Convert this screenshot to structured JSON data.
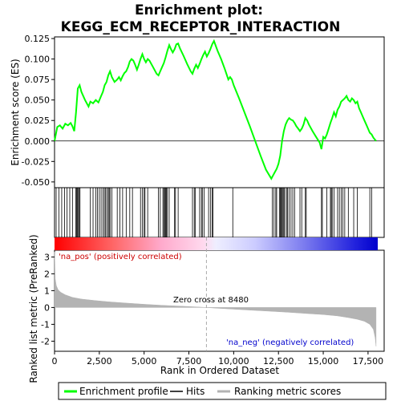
{
  "chart_data": {
    "type": "line",
    "title_line1": "Enrichment plot:",
    "title_line2": "KEGG_ECM_RECEPTOR_INTERACTION",
    "es_panel": {
      "ylabel": "Enrichment score (ES)",
      "ylim": [
        -0.057,
        0.127
      ],
      "yticks": [
        -0.05,
        -0.025,
        0.0,
        0.025,
        0.05,
        0.075,
        0.1,
        0.125
      ],
      "ytick_labels": [
        "-0.050",
        "-0.025",
        "0.000",
        "0.025",
        "0.050",
        "0.075",
        "0.100",
        "0.125"
      ],
      "series_name": "Enrichment profile",
      "color": "#00ff00",
      "x": [
        0,
        150,
        300,
        450,
        600,
        750,
        900,
        1000,
        1100,
        1200,
        1300,
        1400,
        1500,
        1700,
        1900,
        2000,
        2150,
        2300,
        2450,
        2600,
        2700,
        2800,
        2900,
        3000,
        3100,
        3200,
        3350,
        3500,
        3600,
        3700,
        3800,
        3900,
        4000,
        4100,
        4200,
        4300,
        4400,
        4500,
        4600,
        4700,
        4800,
        4900,
        5000,
        5100,
        5200,
        5300,
        5500,
        5700,
        5800,
        5900,
        6000,
        6100,
        6200,
        6300,
        6400,
        6500,
        6600,
        6700,
        6800,
        6900,
        7000,
        7200,
        7400,
        7600,
        7700,
        7800,
        7900,
        8000,
        8100,
        8200,
        8300,
        8400,
        8500,
        8600,
        8700,
        8800,
        8900,
        9100,
        9300,
        9500,
        9700,
        9800,
        9900,
        10000,
        10300,
        10600,
        10900,
        11200,
        11500,
        11800,
        12100,
        12200,
        12300,
        12400,
        12500,
        12600,
        12700,
        12800,
        12900,
        13000,
        13100,
        13200,
        13300,
        13400,
        13500,
        13600,
        13700,
        13800,
        13900,
        14000,
        14100,
        14200,
        14400,
        14600,
        14800,
        14900,
        15000,
        15100,
        15200,
        15300,
        15400,
        15500,
        15600,
        15700,
        15800,
        15900,
        16000,
        16100,
        16200,
        16300,
        16400,
        16500,
        16600,
        16700,
        16800,
        16900,
        17000,
        17100,
        17200,
        17300,
        17400,
        17500,
        17600,
        17700,
        17800,
        17950
      ],
      "y": [
        0.0,
        0.017,
        0.019,
        0.015,
        0.021,
        0.019,
        0.022,
        0.018,
        0.012,
        0.035,
        0.064,
        0.068,
        0.06,
        0.05,
        0.042,
        0.048,
        0.046,
        0.05,
        0.047,
        0.055,
        0.06,
        0.068,
        0.072,
        0.08,
        0.085,
        0.078,
        0.072,
        0.075,
        0.078,
        0.074,
        0.079,
        0.083,
        0.085,
        0.09,
        0.097,
        0.1,
        0.098,
        0.093,
        0.087,
        0.093,
        0.1,
        0.106,
        0.1,
        0.096,
        0.1,
        0.098,
        0.09,
        0.082,
        0.08,
        0.085,
        0.09,
        0.095,
        0.102,
        0.11,
        0.117,
        0.112,
        0.108,
        0.112,
        0.118,
        0.119,
        0.113,
        0.104,
        0.094,
        0.085,
        0.082,
        0.088,
        0.093,
        0.089,
        0.094,
        0.1,
        0.105,
        0.109,
        0.103,
        0.107,
        0.112,
        0.118,
        0.122,
        0.11,
        0.1,
        0.088,
        0.075,
        0.078,
        0.075,
        0.068,
        0.052,
        0.035,
        0.018,
        0.0,
        -0.018,
        -0.035,
        -0.046,
        -0.042,
        -0.038,
        -0.034,
        -0.028,
        -0.018,
        0.0,
        0.012,
        0.02,
        0.025,
        0.028,
        0.026,
        0.025,
        0.022,
        0.018,
        0.015,
        0.012,
        0.015,
        0.02,
        0.028,
        0.025,
        0.02,
        0.012,
        0.005,
        -0.002,
        -0.01,
        0.005,
        0.003,
        0.008,
        0.015,
        0.022,
        0.028,
        0.035,
        0.03,
        0.038,
        0.042,
        0.048,
        0.05,
        0.052,
        0.055,
        0.05,
        0.048,
        0.052,
        0.05,
        0.046,
        0.048,
        0.04,
        0.035,
        0.03,
        0.025,
        0.02,
        0.015,
        0.01,
        0.008,
        0.004,
        0.0
      ]
    },
    "hits": {
      "series_name": "Hits",
      "x": [
        90,
        240,
        400,
        560,
        700,
        850,
        1000,
        1180,
        1230,
        1280,
        1330,
        1380,
        1420,
        2000,
        2150,
        2300,
        2400,
        2500,
        2600,
        2700,
        2780,
        2850,
        2920,
        3000,
        3050,
        3100,
        3200,
        3500,
        3650,
        3800,
        4000,
        4200,
        4350,
        4800,
        4900,
        5000,
        5050,
        5200,
        5800,
        5900,
        6050,
        6100,
        6150,
        6200,
        6250,
        6300,
        6400,
        6700,
        6750,
        6900,
        7700,
        7800,
        7850,
        8100,
        8200,
        8250,
        8350,
        8600,
        8700,
        8800,
        8850,
        9950,
        12150,
        12250,
        12350,
        12400,
        12550,
        12600,
        12650,
        12700,
        12750,
        12800,
        12850,
        12950,
        13000,
        13100,
        13200,
        13300,
        13400,
        13700,
        13800,
        14000,
        14050,
        14900,
        14950,
        15200,
        15400,
        15450,
        15500,
        15600,
        15800,
        15900,
        16000,
        16100,
        16200,
        16400,
        16700,
        16900,
        17600,
        17700
      ]
    },
    "metric_panel": {
      "ylabel": "Ranked list metric (PreRanked)",
      "ylim": [
        -2.6,
        3.4
      ],
      "yticks": [
        -2,
        -1,
        0,
        1,
        2,
        3
      ],
      "ytick_labels": [
        "-2",
        "-1",
        "0",
        "1",
        "2",
        "3"
      ],
      "series_name": "Ranking metric scores",
      "color": "#b3b3b3",
      "x": [
        0,
        40,
        100,
        200,
        350,
        600,
        1000,
        1500,
        2200,
        3000,
        4000,
        5000,
        6000,
        7000,
        8000,
        8480,
        9000,
        10000,
        11000,
        12000,
        13000,
        14000,
        15000,
        15800,
        16400,
        16900,
        17300,
        17600,
        17800,
        17900,
        17950
      ],
      "y": [
        3.3,
        1.7,
        1.3,
        1.05,
        0.9,
        0.75,
        0.6,
        0.5,
        0.42,
        0.34,
        0.26,
        0.19,
        0.13,
        0.08,
        0.03,
        0.0,
        -0.04,
        -0.1,
        -0.16,
        -0.22,
        -0.28,
        -0.35,
        -0.42,
        -0.5,
        -0.6,
        -0.7,
        -0.82,
        -1.0,
        -1.3,
        -1.8,
        -2.3
      ]
    },
    "xlabel": "Rank in Ordered Dataset",
    "xlim": [
      0,
      18400
    ],
    "xticks": [
      0,
      2500,
      5000,
      7500,
      10000,
      12500,
      15000,
      17500
    ],
    "xtick_labels": [
      "0",
      "2,500",
      "5,000",
      "7,500",
      "10,000",
      "12,500",
      "15,000",
      "17,500"
    ],
    "zero_cross": 8480,
    "annotations": {
      "pos": "'na_pos' (positively correlated)",
      "neg": "'na_neg' (negatively correlated)",
      "zero": "Zero cross at 8480"
    },
    "colors": {
      "pos_text": "#cc0000",
      "neg_text": "#0000cc",
      "hit_line": "#000000",
      "bar_red": "#ff0000",
      "bar_blue": "#0000ff"
    },
    "legend": {
      "items": [
        "Enrichment profile",
        "Hits",
        "Ranking metric scores"
      ],
      "placement": "bottom"
    }
  }
}
